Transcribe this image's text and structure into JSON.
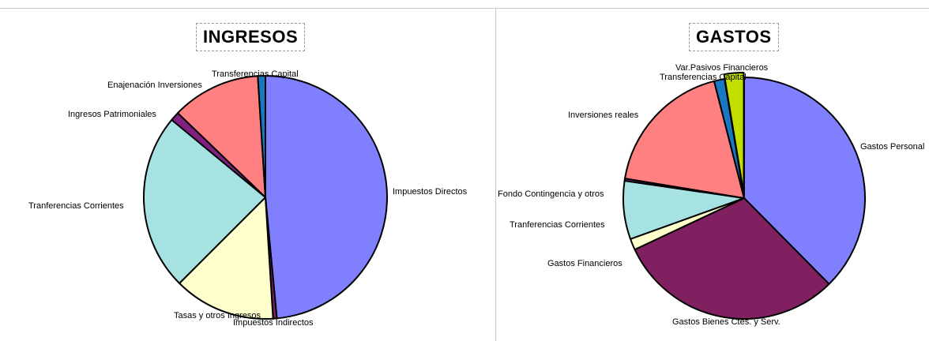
{
  "chart_data": [
    {
      "type": "pie",
      "title": "INGRESOS",
      "categories": [
        "Impuestos Directos",
        "Impuestos Indirectos",
        "Tasas y otros Ingresos",
        "Tranferencias Corrientes",
        "Ingresos Patrimoniales",
        "Enajenación Inversiones",
        "Transferencias Capital"
      ],
      "values": [
        48.5,
        0.5,
        13.5,
        23.5,
        1.2,
        11.8,
        1.0
      ],
      "colors": [
        "#8080ff",
        "#802060",
        "#ffffcc",
        "#a6e2e2",
        "#802080",
        "#ff8080",
        "#1a78c2"
      ],
      "start_angle_deg": 0
    },
    {
      "type": "pie",
      "title": "GASTOS",
      "categories": [
        "Gastos Personal",
        "Gastos Bienes Ctes. y Serv.",
        "Gastos Financieros",
        "Tranferencias Corrientes",
        "Fondo Contingencia y otros",
        "Inversiones reales",
        "Transferencias Capital",
        "Var.Pasivos Financieros"
      ],
      "values": [
        37.6,
        30.4,
        1.5,
        7.8,
        0.3,
        18.4,
        1.4,
        2.6
      ],
      "colors": [
        "#8080ff",
        "#802060",
        "#ffffcc",
        "#a6e2e2",
        "#802080",
        "#ff8080",
        "#1a78c2",
        "#c2e000"
      ],
      "start_angle_deg": 0,
      "exploded": [
        "Var.Pasivos Financieros"
      ]
    }
  ],
  "labels_left": {
    "impuestos_directos": "Impuestos Directos",
    "impuestos_indirectos": "Impuestos Indirectos",
    "tasas": "Tasas y otros Ingresos",
    "tranferencias_corrientes": "Tranferencias Corrientes",
    "ingresos_patrimoniales": "Ingresos Patrimoniales",
    "enajenacion": "Enajenación Inversiones",
    "transferencias_capital": "Transferencias Capital"
  },
  "labels_right": {
    "gastos_personal": "Gastos Personal",
    "gastos_bienes": "Gastos Bienes Ctes. y Serv.",
    "gastos_financieros": "Gastos Financieros",
    "tranferencias_corrientes": "Tranferencias Corrientes",
    "fondo_contingencia": "Fondo Contingencia y otros",
    "inversiones_reales": "Inversiones reales",
    "transferencias_capital": "Transferencias Capital",
    "var_pasivos": "Var.Pasivos Financieros"
  }
}
